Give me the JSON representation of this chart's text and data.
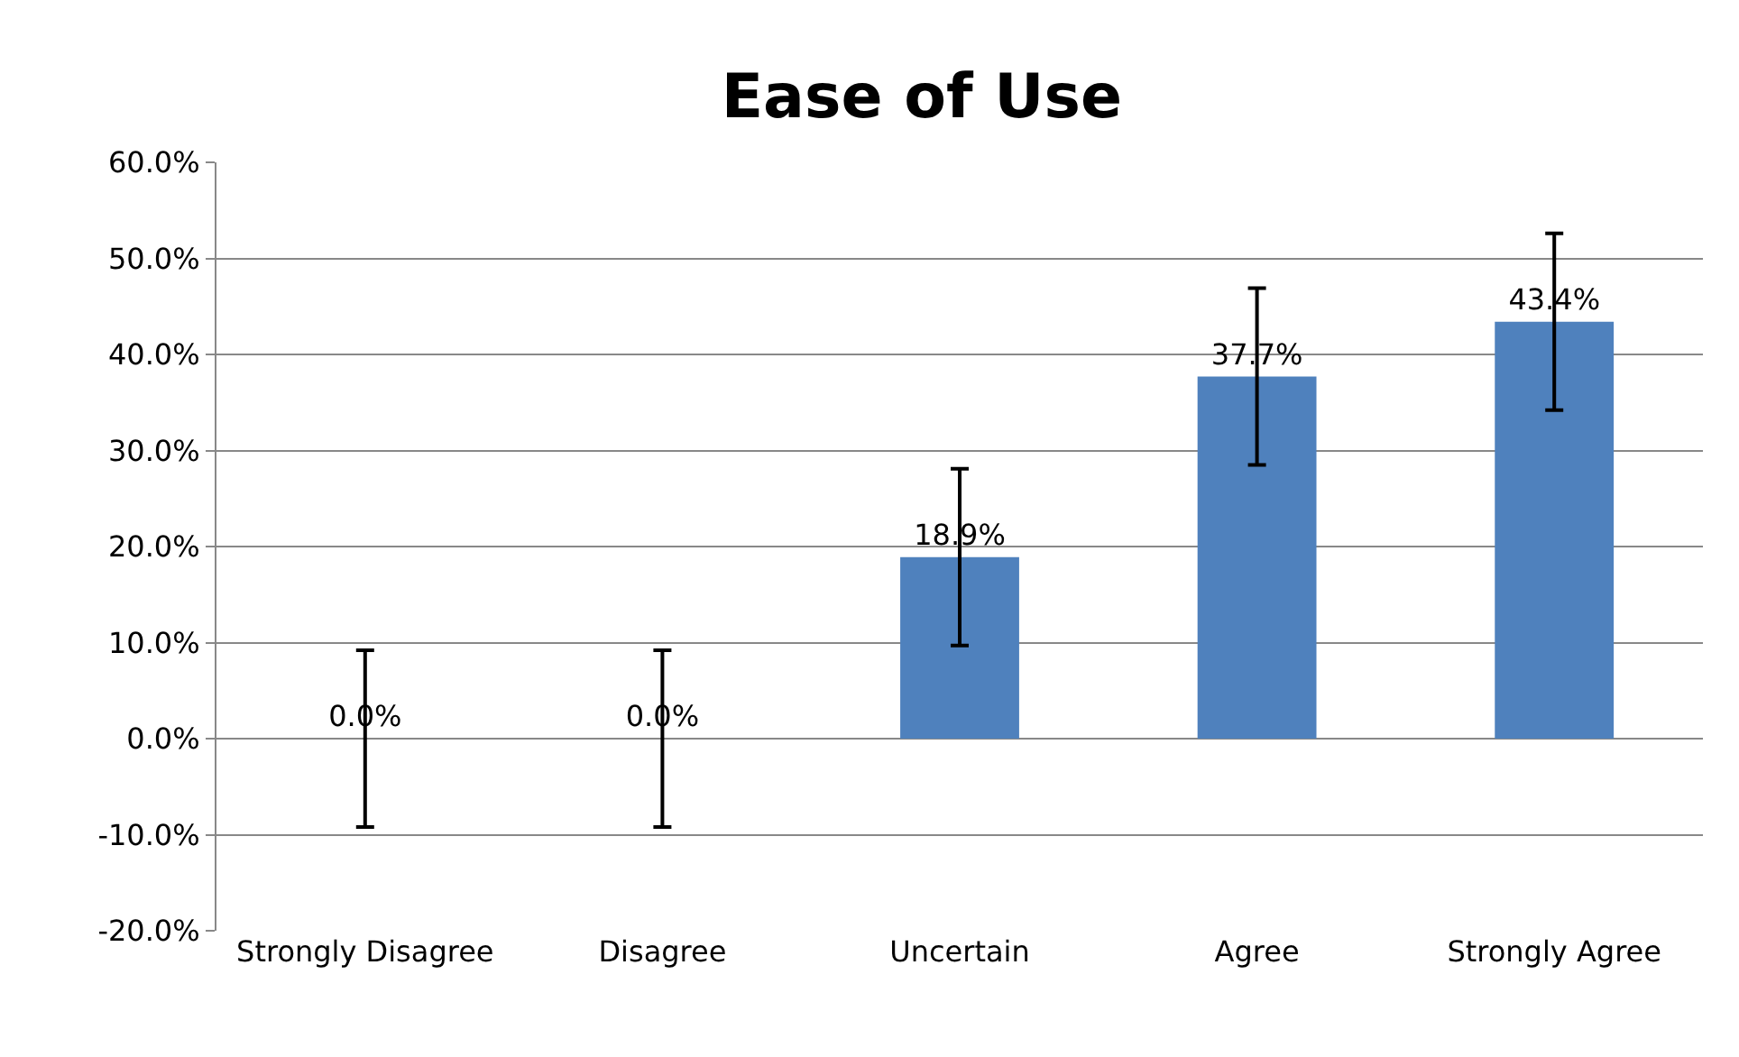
{
  "chart_data": {
    "type": "bar",
    "title": "Ease of Use",
    "categories": [
      "Strongly Disagree",
      "Disagree",
      "Uncertain",
      "Agree",
      "Strongly Agree"
    ],
    "values": [
      0,
      0,
      18.9,
      37.7,
      43.4
    ],
    "errors": [
      9.2,
      9.2,
      9.2,
      9.2,
      9.2
    ],
    "value_labels": [
      "0.0%",
      "0.0%",
      "18.9%",
      "37.7%",
      "43.4%"
    ],
    "color": "#4f81bd",
    "ylim": [
      -20,
      60
    ],
    "yticks": [
      {
        "value": -20,
        "label": "-20.0%"
      },
      {
        "value": -10,
        "label": "-10.0%"
      },
      {
        "value": 0,
        "label": "0.0%"
      },
      {
        "value": 10,
        "label": "10.0%"
      },
      {
        "value": 20,
        "label": "20.0%"
      },
      {
        "value": 30,
        "label": "30.0%"
      },
      {
        "value": 40,
        "label": "40.0%"
      },
      {
        "value": 50,
        "label": "50.0%"
      },
      {
        "value": 60,
        "label": "60.0%"
      }
    ],
    "grid": "y"
  }
}
